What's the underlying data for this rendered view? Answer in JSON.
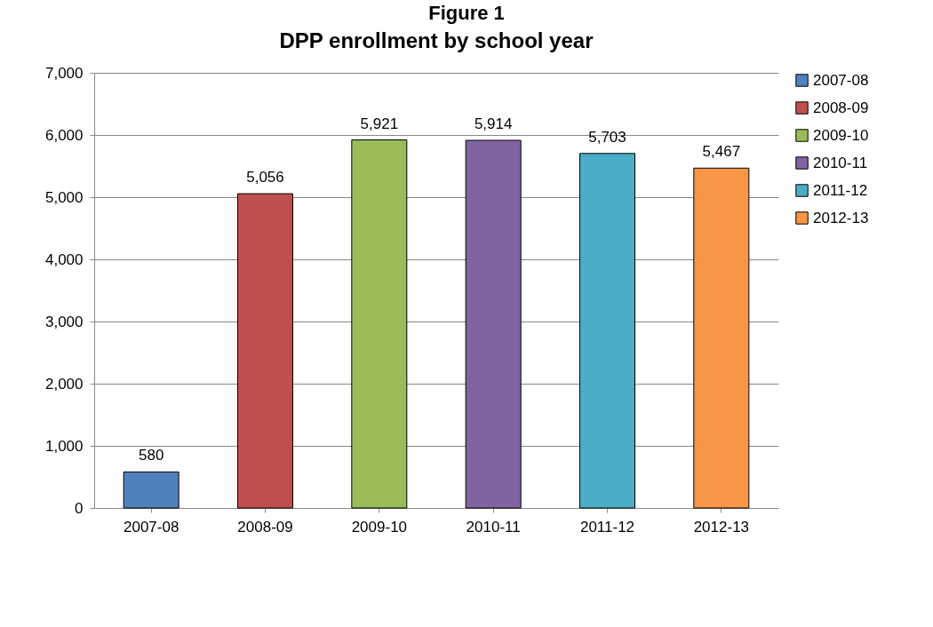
{
  "chart_data": {
    "type": "bar",
    "title": "DPP enrollment by school year",
    "annotations": [
      "Figure 1"
    ],
    "categories": [
      "2007-08",
      "2008-09",
      "2009-10",
      "2010-11",
      "2011-12",
      "2012-13"
    ],
    "series": [
      {
        "name": "2007-08",
        "color": "#4f81bd",
        "values": [
          580,
          null,
          null,
          null,
          null,
          null
        ],
        "value_labels": [
          "580",
          null,
          null,
          null,
          null,
          null
        ]
      },
      {
        "name": "2008-09",
        "color": "#c0504d",
        "values": [
          null,
          5056,
          null,
          null,
          null,
          null
        ],
        "value_labels": [
          null,
          "5,056",
          null,
          null,
          null,
          null
        ]
      },
      {
        "name": "2009-10",
        "color": "#9bbb59",
        "values": [
          null,
          null,
          5921,
          null,
          null,
          null
        ],
        "value_labels": [
          null,
          null,
          "5,921",
          null,
          null,
          null
        ]
      },
      {
        "name": "2010-11",
        "color": "#8064a2",
        "values": [
          null,
          null,
          null,
          5914,
          null,
          null
        ],
        "value_labels": [
          null,
          null,
          null,
          "5,914",
          null,
          null
        ]
      },
      {
        "name": "2011-12",
        "color": "#4bacc6",
        "values": [
          null,
          null,
          null,
          null,
          5703,
          null
        ],
        "value_labels": [
          null,
          null,
          null,
          null,
          "5,703",
          null
        ]
      },
      {
        "name": "2012-13",
        "color": "#f79646",
        "values": [
          null,
          null,
          null,
          null,
          null,
          5467
        ],
        "value_labels": [
          null,
          null,
          null,
          null,
          null,
          "5,467"
        ]
      }
    ],
    "ylim": [
      0,
      7000
    ],
    "yticks": [
      {
        "value": 0,
        "label": "0"
      },
      {
        "value": 1000,
        "label": "1,000"
      },
      {
        "value": 2000,
        "label": "2,000"
      },
      {
        "value": 3000,
        "label": "3,000"
      },
      {
        "value": 4000,
        "label": "4,000"
      },
      {
        "value": 5000,
        "label": "5,000"
      },
      {
        "value": 6000,
        "label": "6,000"
      },
      {
        "value": 7000,
        "label": "7,000"
      }
    ],
    "grid": "y",
    "legend": "right"
  }
}
